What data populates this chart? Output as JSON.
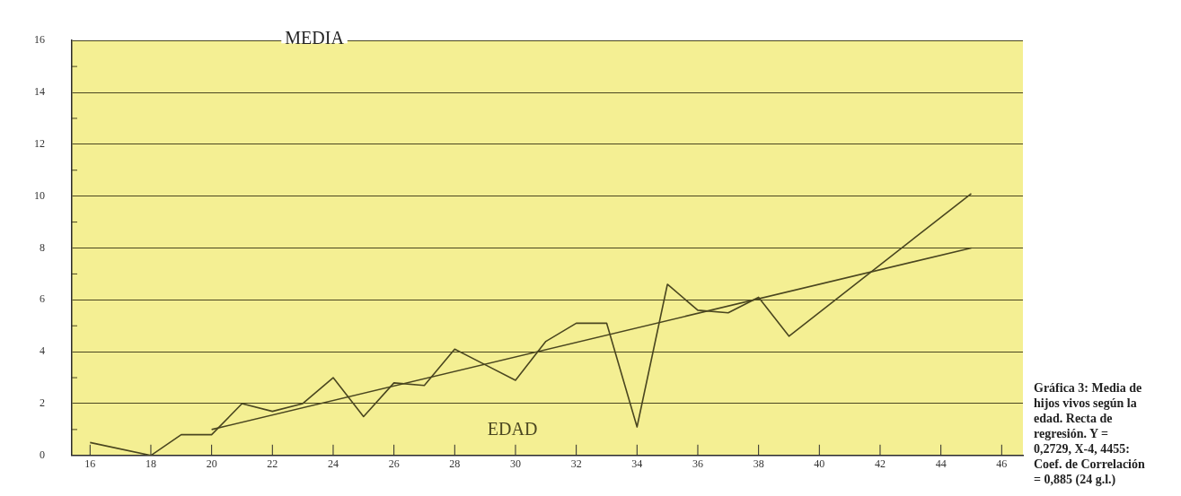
{
  "chart_data": {
    "type": "line",
    "xlabel": "EDAD",
    "ylabel": "MEDIA",
    "annotations": [
      "Gráfica 3: Media de hijos vivos según la edad. Recta de regresión. Y = 0,2729, X-4, 4455: Coef. de Correlación = 0,885 (24 g.l.)"
    ],
    "series": [
      {
        "color": "#4a4620",
        "x": [
          16,
          18,
          19,
          20,
          21,
          22,
          23,
          24,
          25,
          26,
          27,
          28,
          29,
          30,
          31,
          32,
          33,
          34,
          35,
          36,
          37,
          38,
          39,
          45
        ],
        "values": [
          0.5,
          0,
          0.8,
          0.8,
          2.0,
          1.7,
          2.0,
          3.0,
          1.5,
          2.8,
          2.7,
          4.1,
          3.5,
          2.9,
          4.4,
          5.1,
          5.1,
          1.1,
          6.6,
          5.6,
          5.5,
          6.1,
          4.6,
          10.1
        ]
      },
      {
        "color": "#4a4620",
        "x": [
          20,
          45
        ],
        "values": [
          1.0,
          8.0
        ]
      }
    ],
    "xlim": [
      15.4,
      46.7
    ],
    "xticks": [
      16,
      18,
      20,
      22,
      24,
      26,
      28,
      30,
      32,
      34,
      36,
      38,
      40,
      42,
      44,
      46
    ],
    "ylim": [
      0,
      16
    ],
    "yticks": [
      0,
      2,
      4,
      6,
      8,
      10,
      12,
      14,
      16
    ],
    "grid": "y",
    "legend": false,
    "marker": "none",
    "line_style": "solid"
  }
}
